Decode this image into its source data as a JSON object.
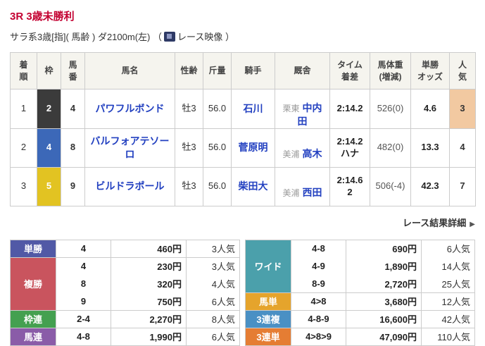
{
  "colors": {
    "title_red": "#c30031",
    "link_blue": "#2240c0",
    "table_header_bg": "#f5f4ee",
    "border_gray": "#cccccc"
  },
  "header": {
    "title": "3R 3歳未勝利",
    "course_info": "サラ系3歳[指]( 馬齢 ) ダ2100m(左)",
    "paren_open": "（",
    "video_label": "レース映像",
    "paren_close": "）"
  },
  "results_table": {
    "headers": [
      "着\n順",
      "枠",
      "馬\n番",
      "馬名",
      "性齢",
      "斤量",
      "騎手",
      "厩舎",
      "タイム\n着差",
      "馬体重\n(増減)",
      "単勝\nオッズ",
      "人\n気"
    ],
    "rows": [
      {
        "pos": "1",
        "waku": "2",
        "waku_color": "#3b3b3b",
        "num": "4",
        "name": "パワフルボンド",
        "sex_age": "牡3",
        "weight": "56.0",
        "jockey": "石川",
        "region": "栗東",
        "trainer": "中内田",
        "time": "2:14.2",
        "horse_weight": "526(0)",
        "odds": "4.6",
        "fav": "3",
        "fav_bg": "#f2c9a1"
      },
      {
        "pos": "2",
        "waku": "4",
        "waku_color": "#3c68b8",
        "num": "8",
        "name": "バルフォアテソーロ",
        "sex_age": "牡3",
        "weight": "56.0",
        "jockey": "菅原明",
        "region": "美浦",
        "trainer": "高木",
        "time": "2:14.2\nハナ",
        "horse_weight": "482(0)",
        "odds": "13.3",
        "fav": "4"
      },
      {
        "pos": "3",
        "waku": "5",
        "waku_color": "#e2c322",
        "num": "9",
        "name": "ビルドラポール",
        "sex_age": "牡3",
        "weight": "56.0",
        "jockey": "柴田大",
        "region": "美浦",
        "trainer": "西田",
        "time": "2:14.6\n2",
        "horse_weight": "506(-4)",
        "odds": "42.3",
        "fav": "7"
      }
    ]
  },
  "detail_link": {
    "label": "レース結果詳細",
    "arrow": "▶"
  },
  "payouts": {
    "left": [
      {
        "label": "単勝",
        "color": "#5159a6",
        "rows": [
          {
            "combo": "4",
            "payout": "460円",
            "fav": "3人気"
          }
        ]
      },
      {
        "label": "複勝",
        "color": "#c9545e",
        "rows": [
          {
            "combo": "4",
            "payout": "230円",
            "fav": "3人気"
          },
          {
            "combo": "8",
            "payout": "320円",
            "fav": "4人気"
          },
          {
            "combo": "9",
            "payout": "750円",
            "fav": "6人気"
          }
        ]
      },
      {
        "label": "枠連",
        "color": "#44a050",
        "rows": [
          {
            "combo": "2-4",
            "payout": "2,270円",
            "fav": "8人気"
          }
        ]
      },
      {
        "label": "馬連",
        "color": "#8a5ca8",
        "rows": [
          {
            "combo": "4-8",
            "payout": "1,990円",
            "fav": "6人気"
          }
        ]
      }
    ],
    "right": [
      {
        "label": "ワイド",
        "color": "#4ba0ab",
        "rows": [
          {
            "combo": "4-8",
            "payout": "690円",
            "fav": "6人気"
          },
          {
            "combo": "4-9",
            "payout": "1,890円",
            "fav": "14人気"
          },
          {
            "combo": "8-9",
            "payout": "2,720円",
            "fav": "25人気"
          }
        ]
      },
      {
        "label": "馬単",
        "color": "#e5a42c",
        "rows": [
          {
            "combo": "4>8",
            "payout": "3,680円",
            "fav": "12人気"
          }
        ]
      },
      {
        "label": "3連複",
        "color": "#4a90c4",
        "rows": [
          {
            "combo": "4-8-9",
            "payout": "16,600円",
            "fav": "42人気"
          }
        ]
      },
      {
        "label": "3連単",
        "color": "#e57d33",
        "rows": [
          {
            "combo": "4>8>9",
            "payout": "47,090円",
            "fav": "110人気"
          }
        ]
      }
    ]
  }
}
